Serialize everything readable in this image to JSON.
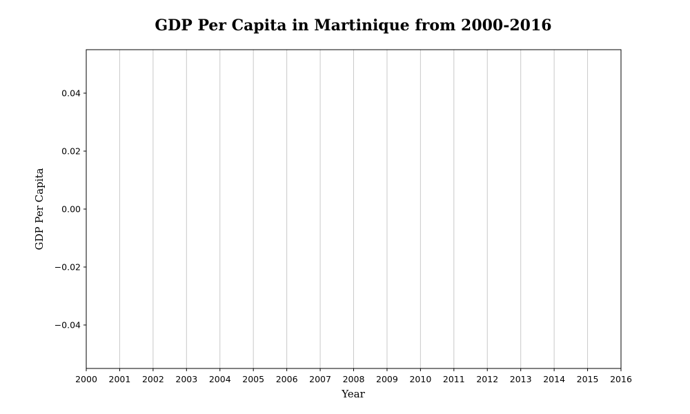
{
  "chart_data": {
    "type": "line",
    "title": "GDP Per Capita in Martinique from 2000-2016",
    "xlabel": "Year",
    "ylabel": "GDP Per Capita",
    "x_ticks": [
      "2000",
      "2001",
      "2002",
      "2003",
      "2004",
      "2005",
      "2006",
      "2007",
      "2008",
      "2009",
      "2010",
      "2011",
      "2012",
      "2013",
      "2014",
      "2015",
      "2016"
    ],
    "y_ticks": [
      "0.04",
      "0.02",
      "0.00",
      "−0.02",
      "−0.04"
    ],
    "xlim": [
      2000,
      2016
    ],
    "ylim": [
      -0.055,
      0.055
    ],
    "y_tick_values": [
      0.04,
      0.02,
      0.0,
      -0.02,
      -0.04
    ],
    "grid": "vertical",
    "series": []
  }
}
